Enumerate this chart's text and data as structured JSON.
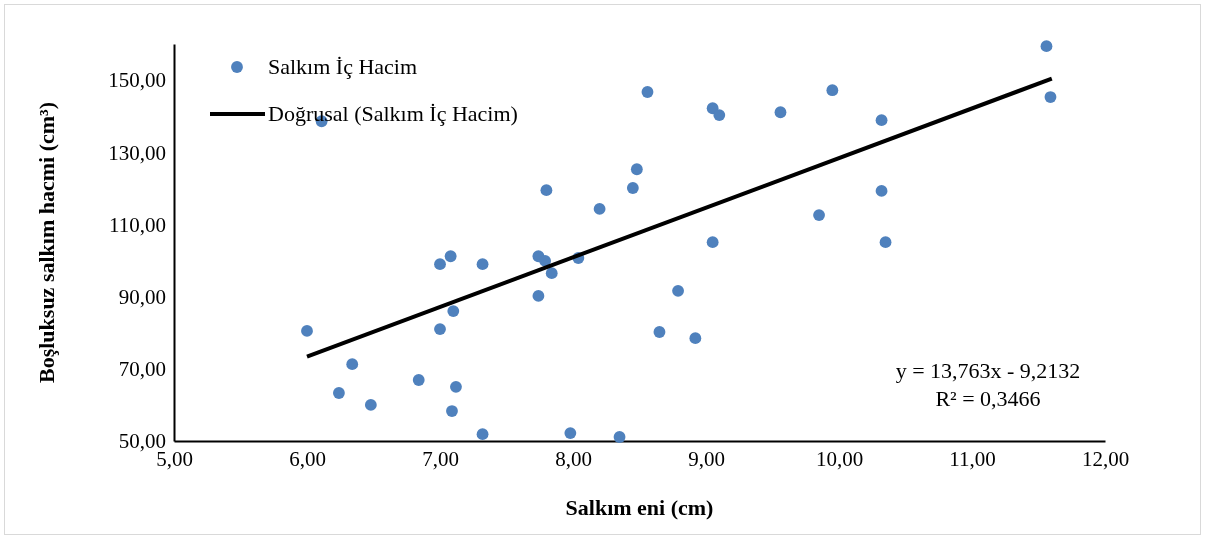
{
  "chart_data": {
    "type": "scatter",
    "xlabel": "Salkım eni (cm)",
    "ylabel": "Boşluksuz salkım hacmi (cm³)",
    "xlim": [
      5,
      12
    ],
    "xticks": [
      {
        "value": 5,
        "label": "5,00"
      },
      {
        "value": 6,
        "label": "6,00"
      },
      {
        "value": 7,
        "label": "7,00"
      },
      {
        "value": 8,
        "label": "8,00"
      },
      {
        "value": 9,
        "label": "9,00"
      },
      {
        "value": 10,
        "label": "10,00"
      },
      {
        "value": 11,
        "label": "11,00"
      },
      {
        "value": 12,
        "label": "12,00"
      }
    ],
    "ylim": [
      50,
      160
    ],
    "yticks": [
      {
        "value": 50,
        "label": "50,00"
      },
      {
        "value": 70,
        "label": "70,00"
      },
      {
        "value": 90,
        "label": "90,00"
      },
      {
        "value": 110,
        "label": "110,00"
      },
      {
        "value": 130,
        "label": "130,00"
      },
      {
        "value": 150,
        "label": "150,00"
      }
    ],
    "grid": false,
    "legend": "top left",
    "series": [
      {
        "name": "Salkım İç Hacim",
        "color": "#4f81bd",
        "marker": "circle",
        "x": [
          6.0,
          6.11,
          6.34,
          6.24,
          6.48,
          6.84,
          7.0,
          7.0,
          7.08,
          7.1,
          7.12,
          7.09,
          7.32,
          7.32,
          7.74,
          7.79,
          7.84,
          7.8,
          7.74,
          8.04,
          7.98,
          8.2,
          8.35,
          8.45,
          8.48,
          8.56,
          8.79,
          8.65,
          8.92,
          9.05,
          9.1,
          9.05,
          9.56,
          9.85,
          9.95,
          10.32,
          10.32,
          10.35,
          11.56,
          11.59
        ],
        "values": [
          80.5,
          138.6,
          71.3,
          63.3,
          60.0,
          66.9,
          99.0,
          81.0,
          101.2,
          86.0,
          65.0,
          58.3,
          99.0,
          51.9,
          101.2,
          99.9,
          96.5,
          119.5,
          90.2,
          100.7,
          52.2,
          114.3,
          51.1,
          120.1,
          125.3,
          146.7,
          91.6,
          80.2,
          78.5,
          142.2,
          140.3,
          105.1,
          141.1,
          112.6,
          147.2,
          138.9,
          119.3,
          105.1,
          159.4,
          145.3
        ]
      },
      {
        "name": "Doğrusal (Salkım İç Hacim)",
        "type": "line",
        "color": "#000000",
        "marker": "none",
        "line_style": "solid",
        "x": [
          6.0,
          11.6
        ],
        "values": [
          73.4,
          150.4
        ]
      }
    ],
    "annotations": [
      "y = 13,763x - 9,2132",
      "R² = 0,3466"
    ]
  }
}
